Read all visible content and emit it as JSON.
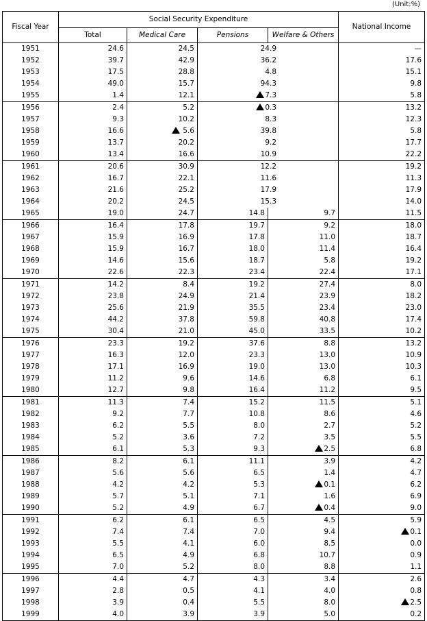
{
  "unit_label": "(Unit:%)",
  "headers": {
    "fiscal_year": "Fiscal Year",
    "group": "Social Security Expenditure",
    "total": "Total",
    "medical": "Medical Care",
    "pensions": "Pensions",
    "welfare": "Welfare & Others",
    "national_income": "National  Income"
  },
  "rows": [
    {
      "year": "1951",
      "total": "24.6",
      "medical": "24.5",
      "pensions": "24.9",
      "welfare": null,
      "ni": "—"
    },
    {
      "year": "1952",
      "total": "39.7",
      "medical": "42.9",
      "pensions": "36.2",
      "welfare": null,
      "ni": "17.6"
    },
    {
      "year": "1953",
      "total": "17.5",
      "medical": "28.8",
      "pensions": "4.8",
      "welfare": null,
      "ni": "15.1"
    },
    {
      "year": "1954",
      "total": "49.0",
      "medical": "15.7",
      "pensions": "94.3",
      "welfare": null,
      "ni": "9.8"
    },
    {
      "year": "1955",
      "total": "1.4",
      "medical": "12.1",
      "pensions": "▲7.3",
      "welfare": null,
      "ni": "5.8"
    },
    {
      "year": "1956",
      "total": "2.4",
      "medical": "5.2",
      "pensions": "▲0.3",
      "welfare": null,
      "ni": "13.2"
    },
    {
      "year": "1957",
      "total": "9.3",
      "medical": "10.2",
      "pensions": "8.3",
      "welfare": null,
      "ni": "12.3"
    },
    {
      "year": "1958",
      "total": "16.6",
      "medical": "▲ 5.6",
      "pensions": "39.8",
      "welfare": null,
      "ni": "5.8"
    },
    {
      "year": "1959",
      "total": "13.7",
      "medical": "20.2",
      "pensions": "9.2",
      "welfare": null,
      "ni": "17.7"
    },
    {
      "year": "1960",
      "total": "13.4",
      "medical": "16.6",
      "pensions": "10.9",
      "welfare": null,
      "ni": "22.2"
    },
    {
      "year": "1961",
      "total": "20.6",
      "medical": "30.9",
      "pensions": "12.2",
      "welfare": null,
      "ni": "19.2"
    },
    {
      "year": "1962",
      "total": "16.7",
      "medical": "22.1",
      "pensions": "11.6",
      "welfare": null,
      "ni": "11.3"
    },
    {
      "year": "1963",
      "total": "21.6",
      "medical": "25.2",
      "pensions": "17.9",
      "welfare": null,
      "ni": "17.9"
    },
    {
      "year": "1964",
      "total": "20.2",
      "medical": "24.5",
      "pensions": "15.3",
      "welfare": null,
      "ni": "14.0"
    },
    {
      "year": "1965",
      "total": "19.0",
      "medical": "24.7",
      "pensions": "14.8",
      "welfare": "9.7",
      "ni": "11.5"
    },
    {
      "year": "1966",
      "total": "16.4",
      "medical": "17.8",
      "pensions": "19.7",
      "welfare": "9.2",
      "ni": "18.0"
    },
    {
      "year": "1967",
      "total": "15.9",
      "medical": "16.9",
      "pensions": "17.8",
      "welfare": "11.0",
      "ni": "18.7"
    },
    {
      "year": "1968",
      "total": "15.9",
      "medical": "16.7",
      "pensions": "18.0",
      "welfare": "11.4",
      "ni": "16.4"
    },
    {
      "year": "1969",
      "total": "14.6",
      "medical": "15.6",
      "pensions": "18.7",
      "welfare": "5.8",
      "ni": "19.2"
    },
    {
      "year": "1970",
      "total": "22.6",
      "medical": "22.3",
      "pensions": "23.4",
      "welfare": "22.4",
      "ni": "17.1"
    },
    {
      "year": "1971",
      "total": "14.2",
      "medical": "8.4",
      "pensions": "19.2",
      "welfare": "27.4",
      "ni": "8.0"
    },
    {
      "year": "1972",
      "total": "23.8",
      "medical": "24.9",
      "pensions": "21.4",
      "welfare": "23.9",
      "ni": "18.2"
    },
    {
      "year": "1973",
      "total": "25.6",
      "medical": "21.9",
      "pensions": "35.5",
      "welfare": "23.4",
      "ni": "23.0"
    },
    {
      "year": "1974",
      "total": "44.2",
      "medical": "37.8",
      "pensions": "59.8",
      "welfare": "40.8",
      "ni": "17.4"
    },
    {
      "year": "1975",
      "total": "30.4",
      "medical": "21.0",
      "pensions": "45.0",
      "welfare": "33.5",
      "ni": "10.2"
    },
    {
      "year": "1976",
      "total": "23.3",
      "medical": "19.2",
      "pensions": "37.6",
      "welfare": "8.8",
      "ni": "13.2"
    },
    {
      "year": "1977",
      "total": "16.3",
      "medical": "12.0",
      "pensions": "23.3",
      "welfare": "13.0",
      "ni": "10.9"
    },
    {
      "year": "1978",
      "total": "17.1",
      "medical": "16.9",
      "pensions": "19.0",
      "welfare": "13.0",
      "ni": "10.3"
    },
    {
      "year": "1979",
      "total": "11.2",
      "medical": "9.6",
      "pensions": "14.6",
      "welfare": "6.8",
      "ni": "6.1"
    },
    {
      "year": "1980",
      "total": "12.7",
      "medical": "9.8",
      "pensions": "16.4",
      "welfare": "11.2",
      "ni": "9.5"
    },
    {
      "year": "1981",
      "total": "11.3",
      "medical": "7.4",
      "pensions": "15.2",
      "welfare": "11.5",
      "ni": "5.1"
    },
    {
      "year": "1982",
      "total": "9.2",
      "medical": "7.7",
      "pensions": "10.8",
      "welfare": "8.6",
      "ni": "4.6"
    },
    {
      "year": "1983",
      "total": "6.2",
      "medical": "5.5",
      "pensions": "8.0",
      "welfare": "2.7",
      "ni": "5.2"
    },
    {
      "year": "1984",
      "total": "5.2",
      "medical": "3.6",
      "pensions": "7.2",
      "welfare": "3.5",
      "ni": "5.5"
    },
    {
      "year": "1985",
      "total": "6.1",
      "medical": "5.3",
      "pensions": "9.3",
      "welfare": "▲2.5",
      "ni": "6.8"
    },
    {
      "year": "1986",
      "total": "8.2",
      "medical": "6.1",
      "pensions": "11.1",
      "welfare": "3.9",
      "ni": "4.2"
    },
    {
      "year": "1987",
      "total": "5.6",
      "medical": "5.6",
      "pensions": "6.5",
      "welfare": "1.4",
      "ni": "4.7"
    },
    {
      "year": "1988",
      "total": "4.2",
      "medical": "4.2",
      "pensions": "5.3",
      "welfare": "▲0.1",
      "ni": "6.2"
    },
    {
      "year": "1989",
      "total": "5.7",
      "medical": "5.1",
      "pensions": "7.1",
      "welfare": "1.6",
      "ni": "6.9"
    },
    {
      "year": "1990",
      "total": "5.2",
      "medical": "4.9",
      "pensions": "6.7",
      "welfare": "▲0.4",
      "ni": "9.0"
    },
    {
      "year": "1991",
      "total": "6.2",
      "medical": "6.1",
      "pensions": "6.5",
      "welfare": "4.5",
      "ni": "5.9"
    },
    {
      "year": "1992",
      "total": "7.4",
      "medical": "7.4",
      "pensions": "7.0",
      "welfare": "9.4",
      "ni": "▲0.1"
    },
    {
      "year": "1993",
      "total": "5.5",
      "medical": "4.1",
      "pensions": "6.0",
      "welfare": "8.5",
      "ni": "0.0"
    },
    {
      "year": "1994",
      "total": "6.5",
      "medical": "4.9",
      "pensions": "6.8",
      "welfare": "10.7",
      "ni": "0.9"
    },
    {
      "year": "1995",
      "total": "7.0",
      "medical": "5.2",
      "pensions": "8.0",
      "welfare": "8.8",
      "ni": "1.1"
    },
    {
      "year": "1996",
      "total": "4.4",
      "medical": "4.7",
      "pensions": "4.3",
      "welfare": "3.4",
      "ni": "2.6"
    },
    {
      "year": "1997",
      "total": "2.8",
      "medical": "0.5",
      "pensions": "4.1",
      "welfare": "4.0",
      "ni": "0.8"
    },
    {
      "year": "1998",
      "total": "3.9",
      "medical": "0.4",
      "pensions": "5.5",
      "welfare": "8.0",
      "ni": "▲2.5"
    },
    {
      "year": "1999",
      "total": "4.0",
      "medical": "3.9",
      "pensions": "3.9",
      "welfare": "5.0",
      "ni": "0.2"
    }
  ]
}
